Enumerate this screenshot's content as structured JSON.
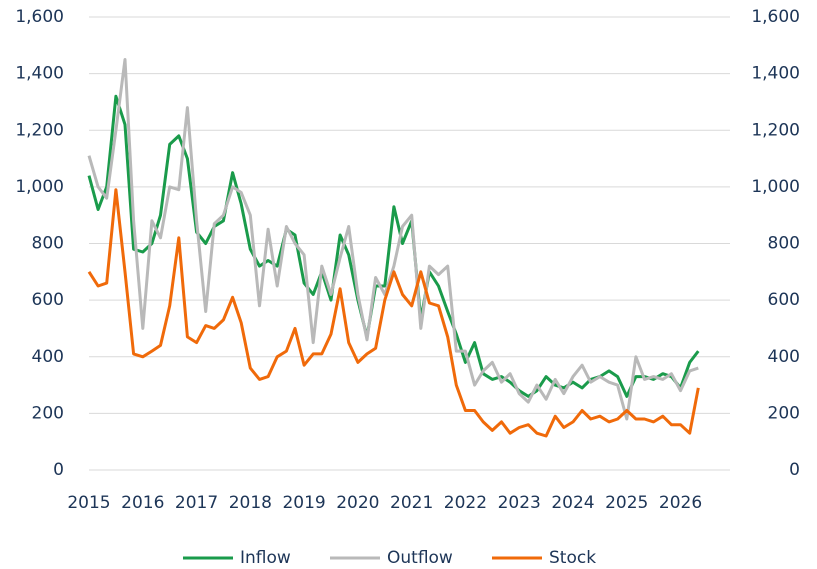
{
  "chart_data": {
    "type": "line",
    "x": [
      2015.0,
      2015.17,
      2015.33,
      2015.5,
      2015.67,
      2015.83,
      2016.0,
      2016.17,
      2016.33,
      2016.5,
      2016.67,
      2016.83,
      2017.0,
      2017.17,
      2017.33,
      2017.5,
      2017.67,
      2017.83,
      2018.0,
      2018.17,
      2018.33,
      2018.5,
      2018.67,
      2018.83,
      2019.0,
      2019.17,
      2019.33,
      2019.5,
      2019.67,
      2019.83,
      2020.0,
      2020.17,
      2020.33,
      2020.5,
      2020.67,
      2020.83,
      2021.0,
      2021.17,
      2021.33,
      2021.5,
      2021.67,
      2021.83,
      2022.0,
      2022.17,
      2022.33,
      2022.5,
      2022.67,
      2022.83,
      2023.0,
      2023.17,
      2023.33,
      2023.5,
      2023.67,
      2023.83,
      2024.0,
      2024.17,
      2024.33,
      2024.5,
      2024.67,
      2024.83,
      2025.0,
      2025.17,
      2025.33,
      2025.5,
      2025.67,
      2025.83,
      2026.0,
      2026.17,
      2026.33
    ],
    "series": [
      {
        "name": "Inflow",
        "color": "#1a9b4b",
        "values": [
          1040,
          920,
          1000,
          1320,
          1220,
          780,
          770,
          800,
          900,
          1150,
          1180,
          1100,
          840,
          800,
          860,
          880,
          1050,
          940,
          780,
          720,
          740,
          720,
          850,
          830,
          660,
          620,
          700,
          600,
          830,
          760,
          600,
          470,
          650,
          650,
          930,
          800,
          880,
          530,
          700,
          650,
          560,
          480,
          380,
          450,
          340,
          320,
          330,
          310,
          280,
          260,
          280,
          330,
          300,
          290,
          310,
          290,
          320,
          330,
          350,
          330,
          260,
          330,
          330,
          320,
          340,
          330,
          290,
          380,
          420
        ]
      },
      {
        "name": "Outflow",
        "color": "#b9b9b9",
        "values": [
          1110,
          1000,
          960,
          1200,
          1450,
          880,
          500,
          880,
          820,
          1000,
          990,
          1280,
          880,
          560,
          870,
          900,
          1000,
          980,
          900,
          580,
          850,
          650,
          860,
          800,
          760,
          450,
          720,
          620,
          750,
          860,
          620,
          460,
          680,
          620,
          720,
          860,
          900,
          500,
          720,
          690,
          720,
          420,
          420,
          300,
          350,
          380,
          310,
          340,
          270,
          240,
          300,
          250,
          320,
          270,
          330,
          370,
          310,
          330,
          310,
          300,
          180,
          400,
          320,
          330,
          320,
          340,
          280,
          350,
          360
        ]
      },
      {
        "name": "Stock",
        "color": "#f06a0a",
        "values": [
          700,
          650,
          660,
          990,
          700,
          410,
          400,
          420,
          440,
          580,
          820,
          470,
          450,
          510,
          500,
          530,
          610,
          520,
          360,
          320,
          330,
          400,
          420,
          500,
          370,
          410,
          410,
          480,
          640,
          450,
          380,
          410,
          430,
          600,
          700,
          620,
          580,
          700,
          590,
          580,
          470,
          300,
          210,
          210,
          170,
          140,
          170,
          130,
          150,
          160,
          130,
          120,
          190,
          150,
          170,
          210,
          180,
          190,
          170,
          180,
          210,
          180,
          180,
          170,
          190,
          160,
          160,
          130,
          290
        ]
      }
    ],
    "xlim": [
      2015,
      2026.92
    ],
    "xticks": [
      2015,
      2016,
      2017,
      2018,
      2019,
      2020,
      2021,
      2022,
      2023,
      2024,
      2025,
      2026
    ],
    "ylim": [
      0,
      1600
    ],
    "yticks": [
      0,
      200,
      400,
      600,
      800,
      {
        "value": 1000,
        "label": "1,000"
      },
      {
        "value": 1200,
        "label": "1,200"
      },
      {
        "value": 1400,
        "label": "1,400"
      },
      {
        "value": 1600,
        "label": "1,600"
      }
    ],
    "y2lim": [
      0,
      1600
    ],
    "y2ticks": [
      0,
      200,
      400,
      600,
      800,
      {
        "value": 1000,
        "label": "1,000"
      },
      {
        "value": 1200,
        "label": "1,200"
      },
      {
        "value": 1400,
        "label": "1,400"
      },
      {
        "value": 1600,
        "label": "1,600"
      }
    ],
    "grid": true,
    "legend": "bottom"
  }
}
